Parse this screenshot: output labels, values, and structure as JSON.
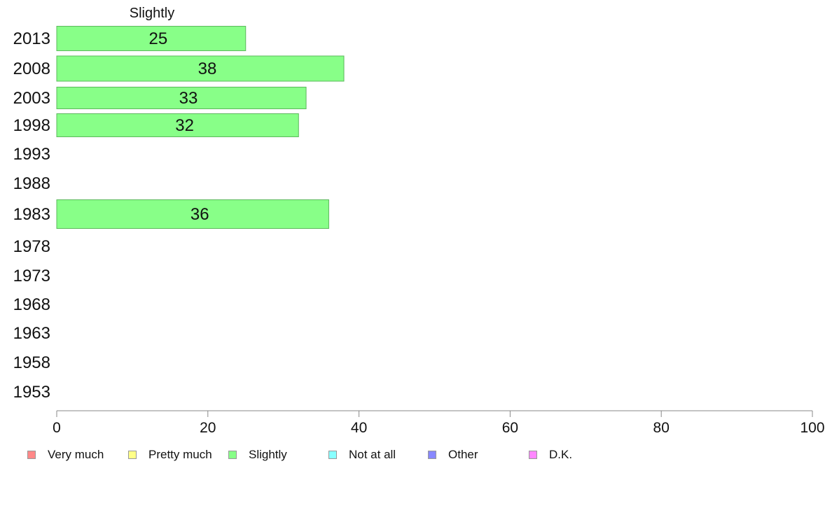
{
  "chart_data": {
    "type": "bar",
    "title": "Slightly",
    "categories": [
      "2013",
      "2008",
      "2003",
      "1998",
      "1993",
      "1988",
      "1983",
      "1978",
      "1973",
      "1968",
      "1963",
      "1958",
      "1953"
    ],
    "series": [
      {
        "name": "Slightly",
        "color": "#88ff88",
        "values": [
          25,
          38,
          33,
          32,
          null,
          null,
          36,
          null,
          null,
          null,
          null,
          null,
          null
        ]
      }
    ],
    "value_labels": [
      "25",
      "38",
      "33",
      "32",
      "",
      "",
      "36",
      "",
      "",
      "",
      "",
      "",
      ""
    ],
    "xlim": [
      0,
      100
    ],
    "xticks": [
      0,
      20,
      40,
      60,
      80,
      100
    ],
    "xlabel": "",
    "ylabel": "",
    "grid": false,
    "legend_position": "bottom",
    "legend": [
      {
        "label": "Very much",
        "color": "#ff8888"
      },
      {
        "label": "Pretty much",
        "color": "#ffff88"
      },
      {
        "label": "Slightly",
        "color": "#88ff88"
      },
      {
        "label": "Not at all",
        "color": "#88ffff"
      },
      {
        "label": "Other",
        "color": "#8888ff"
      },
      {
        "label": "D.K.",
        "color": "#ff88ff"
      }
    ]
  }
}
